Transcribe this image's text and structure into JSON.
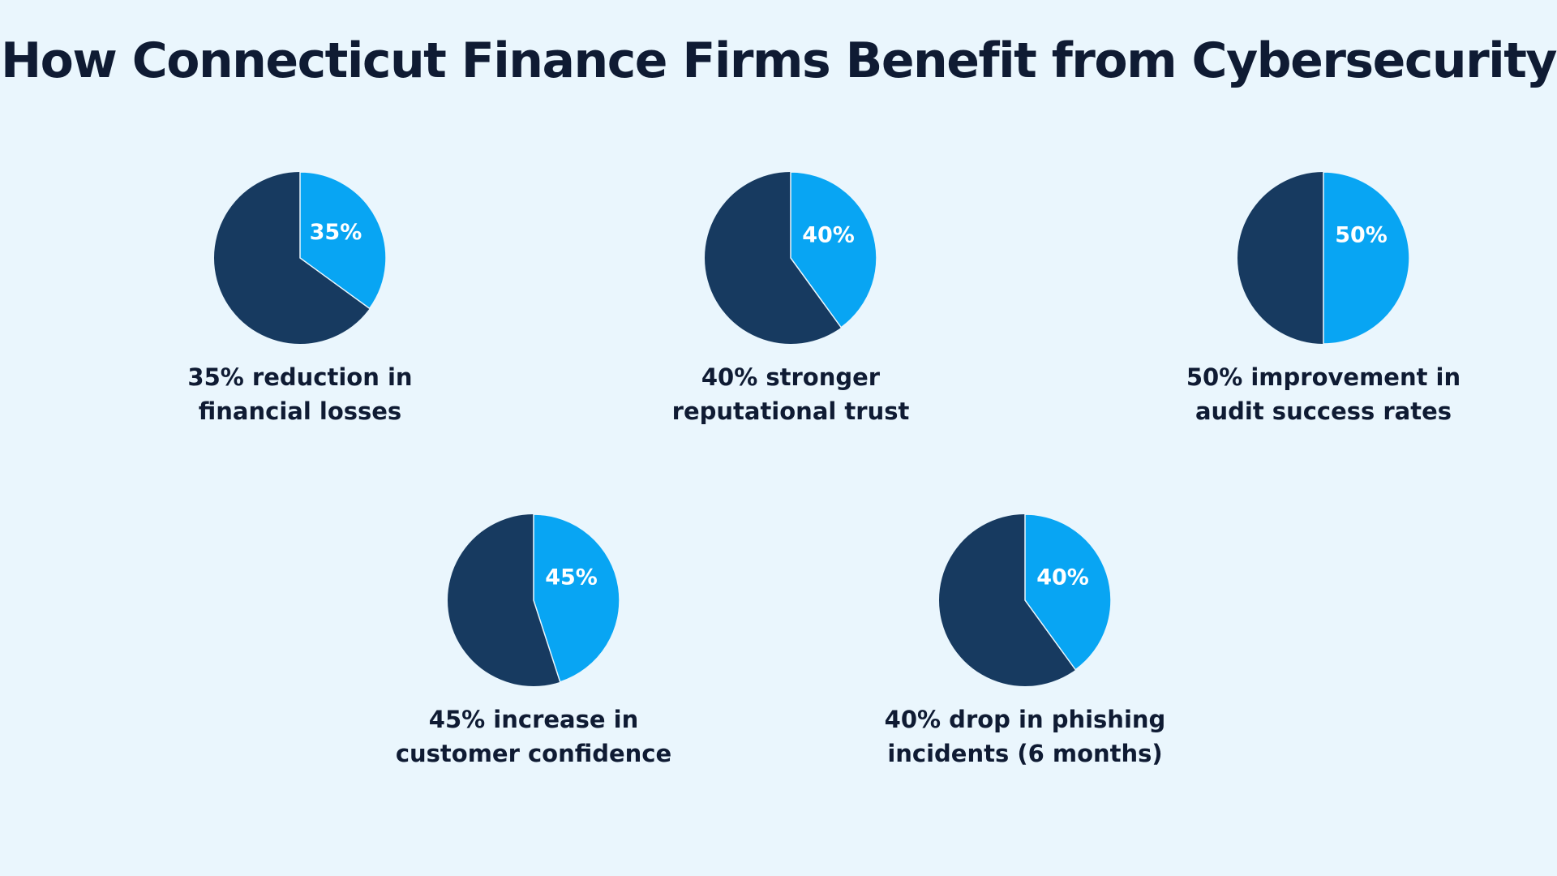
{
  "title": "How Connecticut Finance Firms Benefit from Cybersecurity",
  "colors": {
    "background": "#EAF6FD",
    "highlight_slice": "#08A5F3",
    "remainder_slice": "#173A60",
    "text": "#0F1B33"
  },
  "chart_data": [
    {
      "type": "pie",
      "value_percent": 35,
      "slice_label": "35%",
      "caption": [
        "35% reduction in",
        "financial losses"
      ]
    },
    {
      "type": "pie",
      "value_percent": 40,
      "slice_label": "40%",
      "caption": [
        "40% stronger",
        "reputational trust"
      ]
    },
    {
      "type": "pie",
      "value_percent": 50,
      "slice_label": "50%",
      "caption": [
        "50% improvement in",
        "audit success rates"
      ]
    },
    {
      "type": "pie",
      "value_percent": 45,
      "slice_label": "45%",
      "caption": [
        "45% increase in",
        "customer confidence"
      ]
    },
    {
      "type": "pie",
      "value_percent": 40,
      "slice_label": "40%",
      "caption": [
        "40% drop in phishing",
        "incidents (6 months)"
      ]
    }
  ]
}
